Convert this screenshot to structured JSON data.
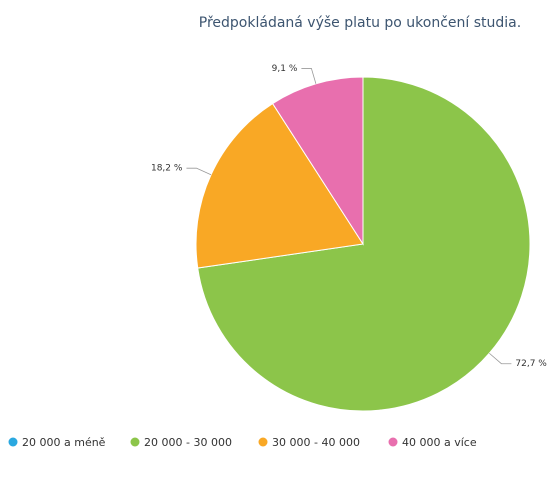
{
  "chart_data": {
    "type": "pie",
    "title": "Předpokládaná výše platu po ukončení studia.",
    "categories": [
      "20 000 a méně",
      "20 000 - 30 000",
      "30 000 - 40 000",
      "40 000 a více"
    ],
    "values": [
      0,
      72.7,
      18.2,
      9.1
    ],
    "value_labels": [
      null,
      "72,7 %",
      "18,2 %",
      "9,1 %"
    ],
    "colors": [
      "#2aa8e0",
      "#8cc54a",
      "#f9a825",
      "#e86fae"
    ],
    "legend": "bottom"
  }
}
